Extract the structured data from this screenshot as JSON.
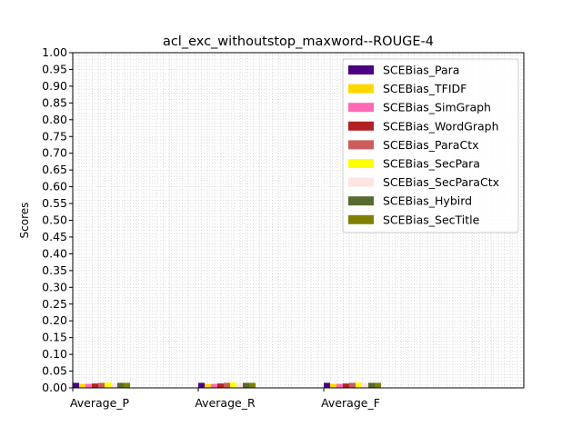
{
  "chart_data": {
    "type": "bar",
    "title": "acl_exc_withoutstop_maxword--ROUGE-4",
    "xlabel": "",
    "ylabel": "Scores",
    "ylim": [
      0,
      1.0
    ],
    "yticks": [
      "0.00",
      "0.05",
      "0.10",
      "0.15",
      "0.20",
      "0.25",
      "0.30",
      "0.35",
      "0.40",
      "0.45",
      "0.50",
      "0.55",
      "0.60",
      "0.65",
      "0.70",
      "0.75",
      "0.80",
      "0.85",
      "0.90",
      "0.95",
      "1.00"
    ],
    "grid": "on (dotted, minor)",
    "legend_position": "top-right",
    "categories": [
      "Average_P",
      "Average_R",
      "Average_F"
    ],
    "series": [
      {
        "name": "SCEBias_Para",
        "color": "#4b0082",
        "values": [
          0.015,
          0.015,
          0.015
        ]
      },
      {
        "name": "SCEBias_TFIDF",
        "color": "#ffd700",
        "values": [
          0.012,
          0.012,
          0.012
        ]
      },
      {
        "name": "SCEBias_SimGraph",
        "color": "#ff69b4",
        "values": [
          0.012,
          0.012,
          0.012
        ]
      },
      {
        "name": "SCEBias_WordGraph",
        "color": "#b22222",
        "values": [
          0.013,
          0.013,
          0.013
        ]
      },
      {
        "name": "SCEBias_ParaCtx",
        "color": "#cd5c5c",
        "values": [
          0.015,
          0.015,
          0.015
        ]
      },
      {
        "name": "SCEBias_SecPara",
        "color": "#ffff00",
        "values": [
          0.016,
          0.016,
          0.016
        ]
      },
      {
        "name": "SCEBias_SecParaCtx",
        "color": "#ffe4e1",
        "values": [
          0.014,
          0.014,
          0.014
        ]
      },
      {
        "name": "SCEBias_Hybird",
        "color": "#556b2f",
        "values": [
          0.015,
          0.015,
          0.015
        ]
      },
      {
        "name": "SCEBias_SecTitle",
        "color": "#808000",
        "values": [
          0.015,
          0.015,
          0.015
        ]
      }
    ]
  }
}
